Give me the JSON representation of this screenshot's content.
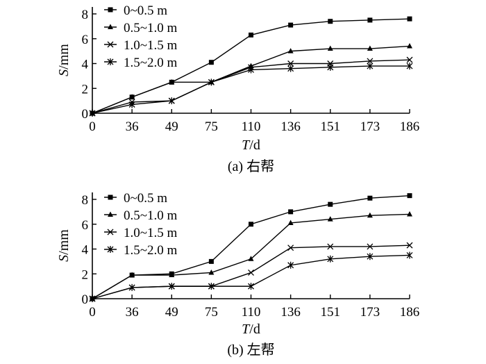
{
  "chart_data": [
    {
      "type": "line",
      "caption": "(a) 右帮",
      "xlabel_var": "T",
      "xlabel_unit": "/d",
      "ylabel_var": "S",
      "ylabel_unit": "/mm",
      "x": [
        "0",
        "36",
        "49",
        "75",
        "110",
        "136",
        "151",
        "173",
        "186"
      ],
      "ylim": [
        0,
        8
      ],
      "yticks": [
        "0",
        "2",
        "4",
        "6",
        "8"
      ],
      "legend_position": "top-left",
      "series": [
        {
          "name": "0~0.5 m",
          "marker": "square",
          "values": [
            0,
            1.3,
            2.5,
            4.1,
            6.3,
            7.1,
            7.4,
            7.5,
            7.6
          ]
        },
        {
          "name": "0.5~1.0 m",
          "marker": "triangle",
          "values": [
            0,
            1.3,
            2.5,
            2.5,
            3.8,
            5.0,
            5.2,
            5.2,
            5.4
          ]
        },
        {
          "name": "1.0~1.5 m",
          "marker": "x",
          "values": [
            0,
            0.9,
            1.0,
            2.5,
            3.7,
            4.0,
            4.0,
            4.2,
            4.3
          ]
        },
        {
          "name": "1.5~2.0 m",
          "marker": "star",
          "values": [
            0,
            0.7,
            1.0,
            2.5,
            3.5,
            3.6,
            3.7,
            3.8,
            3.8
          ]
        }
      ]
    },
    {
      "type": "line",
      "caption": "(b) 左帮",
      "xlabel_var": "T",
      "xlabel_unit": "/d",
      "ylabel_var": "S",
      "ylabel_unit": "/mm",
      "x": [
        "0",
        "36",
        "49",
        "75",
        "110",
        "136",
        "151",
        "173",
        "186"
      ],
      "ylim": [
        0,
        8
      ],
      "yticks": [
        "0",
        "2",
        "4",
        "6",
        "8"
      ],
      "legend_position": "top-left",
      "series": [
        {
          "name": "0~0.5 m",
          "marker": "square",
          "values": [
            0,
            1.9,
            2.0,
            3.0,
            6.0,
            7.0,
            7.6,
            8.1,
            8.3
          ]
        },
        {
          "name": "0.5~1.0 m",
          "marker": "triangle",
          "values": [
            0,
            1.9,
            1.9,
            2.1,
            3.2,
            6.1,
            6.4,
            6.7,
            6.8
          ]
        },
        {
          "name": "1.0~1.5 m",
          "marker": "x",
          "values": [
            0,
            0.9,
            1.0,
            1.0,
            2.1,
            4.1,
            4.2,
            4.2,
            4.3
          ]
        },
        {
          "name": "1.5~2.0 m",
          "marker": "star",
          "values": [
            0,
            0.9,
            1.0,
            1.0,
            1.0,
            2.7,
            3.2,
            3.4,
            3.5
          ]
        }
      ]
    }
  ]
}
